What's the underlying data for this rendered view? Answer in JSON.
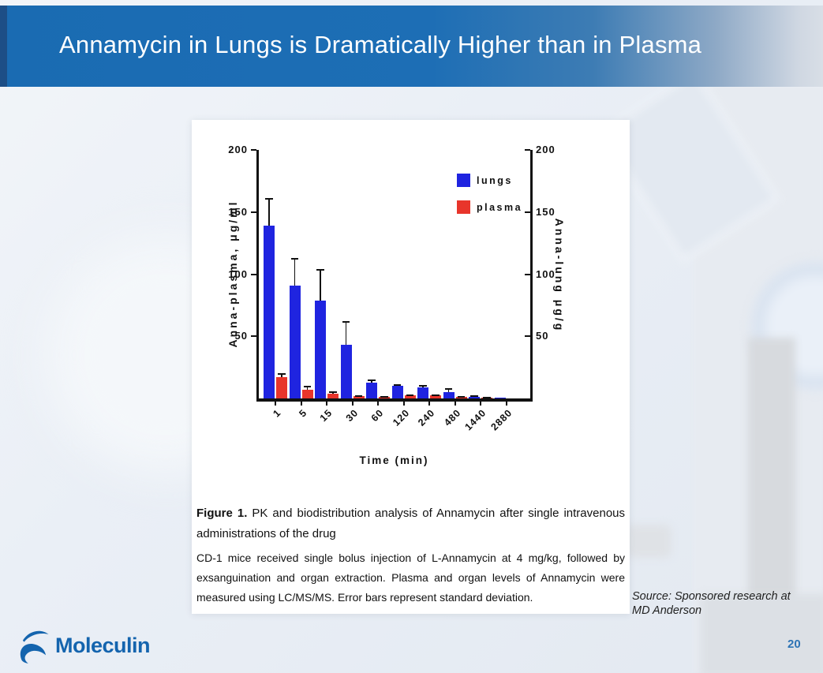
{
  "slide": {
    "title": "Annamycin in Lungs is Dramatically Higher than in Plasma",
    "page_number": "20",
    "source_note": "Source: Sponsored research at MD Anderson",
    "logo_text": "Moleculin"
  },
  "figure": {
    "caption_label": "Figure 1.",
    "caption_heading": " PK and biodistribution analysis of Annamycin after single intravenous administrations of the drug",
    "caption_body": "CD-1 mice received single bolus injection of L-Annamycin at 4 mg/kg, followed by exsanguination and organ extraction. Plasma and organ levels of Annamycin were measured using LC/MS/MS. Error bars represent standard deviation."
  },
  "chart_data": {
    "type": "bar",
    "title": "",
    "xlabel": "Time (min)",
    "ylabel_left": "Anna-plasma, μg/ml",
    "ylabel_right": "Anna-lung μg/g",
    "categories": [
      "1",
      "5",
      "15",
      "30",
      "60",
      "120",
      "240",
      "480",
      "1440",
      "2880"
    ],
    "series": [
      {
        "name": "lungs",
        "color": "#1f24e0",
        "values": [
          139,
          91,
          79,
          43,
          13,
          10,
          9,
          5,
          1.5,
          0.3
        ],
        "errors": [
          22,
          22,
          25,
          19,
          2,
          1.5,
          1.5,
          3,
          0.8,
          0
        ]
      },
      {
        "name": "plasma",
        "color": "#e8352b",
        "values": [
          17,
          7,
          4,
          2,
          1.5,
          2.5,
          2.5,
          1.5,
          0.7,
          0
        ],
        "errors": [
          3.5,
          3,
          1.5,
          0.7,
          0.5,
          0.7,
          0.7,
          0.5,
          0.3,
          0
        ]
      }
    ],
    "ylim": [
      0,
      200
    ],
    "yticks": [
      50,
      100,
      150,
      200
    ],
    "legend_position": "upper right",
    "grid": false,
    "error_bars": "standard deviation, upper side only"
  },
  "colors": {
    "banner_blue": "#1a6bb2",
    "banner_edge_navy": "#1d4e86",
    "lungs_bar": "#1f24e0",
    "plasma_bar": "#e8352b",
    "page_number_blue": "#2e74b5",
    "logo_blue": "#1464ae"
  }
}
